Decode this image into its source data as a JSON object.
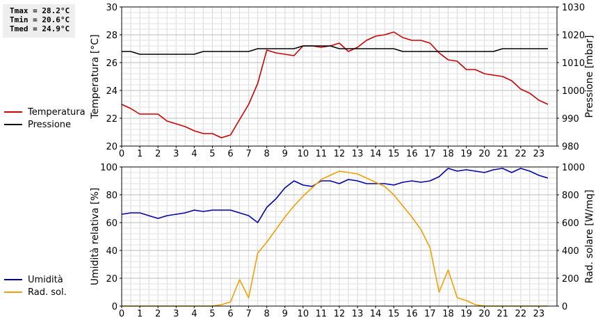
{
  "stats": {
    "tmax": "Tmax = 28.2°C",
    "tmin": "Tmin = 20.6°C",
    "tmed": "Tmed = 24.9°C"
  },
  "legend_top": [
    {
      "label": "Temperatura",
      "color": "#cc0000"
    },
    {
      "label": "Pressione",
      "color": "#000000"
    }
  ],
  "legend_bottom": [
    {
      "label": "Umidità",
      "color": "#0000aa"
    },
    {
      "label": "Rad. sol.",
      "color": "#f0a000"
    }
  ],
  "chart_data": [
    {
      "type": "line",
      "xlim": [
        0,
        24
      ],
      "xticks": [
        0,
        1,
        2,
        3,
        4,
        5,
        6,
        7,
        8,
        9,
        10,
        11,
        12,
        13,
        14,
        15,
        16,
        17,
        18,
        19,
        20,
        21,
        22,
        23
      ],
      "ylabel": "Temperatura [°C]",
      "ylim": [
        20,
        30
      ],
      "yticks": [
        20,
        22,
        24,
        26,
        28,
        30
      ],
      "y2label": "Pressione [mbar]",
      "y2lim": [
        980,
        1030
      ],
      "y2ticks": [
        980,
        990,
        1000,
        1010,
        1020,
        1030
      ],
      "grid": true,
      "series": [
        {
          "name": "Temperatura",
          "axis": "left",
          "color": "#cc0000",
          "x": [
            0,
            0.5,
            1,
            1.5,
            2,
            2.5,
            3,
            3.5,
            4,
            4.5,
            5,
            5.5,
            6,
            6.5,
            7,
            7.5,
            8,
            8.5,
            9,
            9.5,
            10,
            10.5,
            11,
            11.5,
            12,
            12.5,
            13,
            13.5,
            14,
            14.5,
            15,
            15.5,
            16,
            16.5,
            17,
            17.5,
            18,
            18.5,
            19,
            19.5,
            20,
            20.5,
            21,
            21.5,
            22,
            22.5,
            23,
            23.5
          ],
          "values": [
            23.0,
            22.7,
            22.3,
            22.3,
            22.3,
            21.8,
            21.6,
            21.4,
            21.1,
            20.9,
            20.9,
            20.6,
            20.8,
            21.9,
            23.0,
            24.5,
            26.9,
            26.7,
            26.6,
            26.5,
            27.2,
            27.2,
            27.1,
            27.2,
            27.4,
            26.8,
            27.1,
            27.6,
            27.9,
            28.0,
            28.2,
            27.8,
            27.6,
            27.6,
            27.4,
            26.7,
            26.2,
            26.1,
            25.5,
            25.5,
            25.2,
            25.1,
            25.0,
            24.7,
            24.1,
            23.8,
            23.3,
            23.0
          ]
        },
        {
          "name": "Pressione",
          "axis": "right",
          "color": "#000000",
          "x": [
            0,
            0.5,
            1,
            1.5,
            2,
            2.5,
            3,
            3.5,
            4,
            4.5,
            5,
            5.5,
            6,
            6.5,
            7,
            7.5,
            8,
            8.5,
            9,
            9.5,
            10,
            10.5,
            11,
            11.5,
            12,
            12.5,
            13,
            13.5,
            14,
            14.5,
            15,
            15.5,
            16,
            16.5,
            17,
            17.5,
            18,
            18.5,
            19,
            19.5,
            20,
            20.5,
            21,
            21.5,
            22,
            22.5,
            23,
            23.5
          ],
          "values": [
            1014,
            1014,
            1013,
            1013,
            1013,
            1013,
            1013,
            1013,
            1013,
            1014,
            1014,
            1014,
            1014,
            1014,
            1014,
            1015,
            1015,
            1015,
            1015,
            1015,
            1016,
            1016,
            1016,
            1016,
            1015,
            1015,
            1015,
            1015,
            1015,
            1015,
            1015,
            1014,
            1014,
            1014,
            1014,
            1014,
            1014,
            1014,
            1014,
            1014,
            1014,
            1014,
            1015,
            1015,
            1015,
            1015,
            1015,
            1015
          ]
        }
      ]
    },
    {
      "type": "line",
      "xlim": [
        0,
        24
      ],
      "xticks": [
        0,
        1,
        2,
        3,
        4,
        5,
        6,
        7,
        8,
        9,
        10,
        11,
        12,
        13,
        14,
        15,
        16,
        17,
        18,
        19,
        20,
        21,
        22,
        23
      ],
      "ylabel": "Umidità relativa [%]",
      "ylim": [
        0,
        100
      ],
      "yticks": [
        0,
        20,
        40,
        60,
        80,
        100
      ],
      "y2label": "Rad. solare [W/mq]",
      "y2lim": [
        0,
        1000
      ],
      "y2ticks": [
        0,
        200,
        400,
        600,
        800,
        1000
      ],
      "grid": true,
      "series": [
        {
          "name": "Umidità",
          "axis": "left",
          "color": "#0000aa",
          "x": [
            0,
            0.5,
            1,
            1.5,
            2,
            2.5,
            3,
            3.5,
            4,
            4.5,
            5,
            5.5,
            6,
            6.5,
            7,
            7.5,
            8,
            8.5,
            9,
            9.5,
            10,
            10.5,
            11,
            11.5,
            12,
            12.5,
            13,
            13.5,
            14,
            14.5,
            15,
            15.5,
            16,
            16.5,
            17,
            17.5,
            18,
            18.5,
            19,
            19.5,
            20,
            20.5,
            21,
            21.5,
            22,
            22.5,
            23,
            23.5
          ],
          "values": [
            66,
            67,
            67,
            65,
            63,
            65,
            66,
            67,
            69,
            68,
            69,
            69,
            69,
            67,
            65,
            60,
            71,
            77,
            85,
            90,
            87,
            86,
            90,
            90,
            88,
            91,
            90,
            88,
            88,
            88,
            87,
            89,
            90,
            89,
            90,
            93,
            99,
            97,
            98,
            97,
            96,
            98,
            99,
            96,
            99,
            97,
            94,
            92
          ]
        },
        {
          "name": "Rad. sol.",
          "axis": "right",
          "color": "#f0a000",
          "x": [
            0,
            0.5,
            1,
            1.5,
            2,
            2.5,
            3,
            3.5,
            4,
            4.5,
            5,
            5.5,
            6,
            6.5,
            7,
            7.5,
            8,
            8.5,
            9,
            9.5,
            10,
            10.5,
            11,
            11.5,
            12,
            12.5,
            13,
            13.5,
            14,
            14.5,
            15,
            15.5,
            16,
            16.5,
            17,
            17.5,
            18,
            18.5,
            19,
            19.5,
            20,
            20.5,
            21,
            21.5,
            22,
            22.5,
            23,
            23.5
          ],
          "values": [
            0,
            0,
            0,
            0,
            0,
            0,
            0,
            0,
            0,
            0,
            0,
            10,
            30,
            190,
            60,
            380,
            460,
            550,
            640,
            720,
            790,
            850,
            910,
            940,
            970,
            960,
            950,
            920,
            890,
            860,
            800,
            720,
            640,
            550,
            420,
            100,
            260,
            60,
            40,
            10,
            0,
            0,
            0,
            0,
            0,
            0,
            0,
            0
          ]
        }
      ]
    }
  ]
}
